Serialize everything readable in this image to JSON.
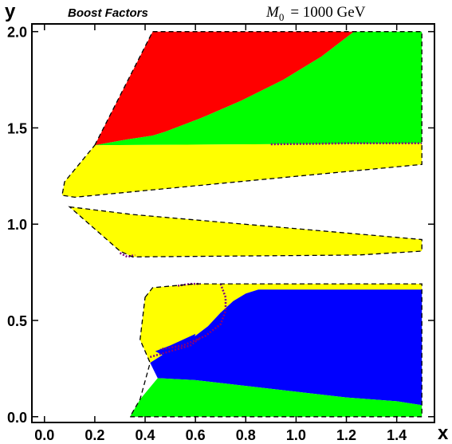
{
  "chart_data": {
    "type": "area",
    "title": "Boost Factors",
    "annotation": {
      "symbol": "M",
      "subscript": "0",
      "text": "= 1000 GeV"
    },
    "xlabel": "x",
    "ylabel": "y",
    "xlim": [
      -0.05,
      1.55
    ],
    "ylim": [
      -0.03,
      2.04
    ],
    "xticks": [
      "0.0",
      "0.2",
      "0.4",
      "0.6",
      "0.8",
      "1.0",
      "1.2",
      "1.4"
    ],
    "xtick_values": [
      0.0,
      0.2,
      0.4,
      0.6,
      0.8,
      1.0,
      1.2,
      1.4
    ],
    "yticks": [
      "0.0",
      "0.5",
      "1.0",
      "1.5",
      "2.0"
    ],
    "ytick_values": [
      0.0,
      0.5,
      1.0,
      1.5,
      2.0
    ],
    "grid": false,
    "colors": {
      "red": "#ff0000",
      "green": "#00ff00",
      "yellow": "#ffff00",
      "blue": "#0000ff",
      "purple": "#800080",
      "boundary": "#000000"
    },
    "regions": [
      {
        "color": "red",
        "points": [
          [
            0.2,
            1.41
          ],
          [
            0.43,
            2.0
          ],
          [
            1.23,
            2.0
          ],
          [
            1.1,
            1.87
          ],
          [
            0.95,
            1.75
          ],
          [
            0.78,
            1.64
          ],
          [
            0.62,
            1.55
          ],
          [
            0.48,
            1.48
          ],
          [
            0.43,
            1.46
          ],
          [
            0.33,
            1.44
          ],
          [
            0.2,
            1.41
          ]
        ]
      },
      {
        "color": "green",
        "points": [
          [
            0.2,
            1.41
          ],
          [
            0.33,
            1.44
          ],
          [
            0.43,
            1.46
          ],
          [
            0.48,
            1.48
          ],
          [
            0.62,
            1.55
          ],
          [
            0.78,
            1.64
          ],
          [
            0.95,
            1.75
          ],
          [
            1.1,
            1.87
          ],
          [
            1.23,
            2.0
          ],
          [
            1.5,
            2.0
          ],
          [
            1.5,
            1.42
          ],
          [
            0.2,
            1.41
          ]
        ]
      },
      {
        "color": "yellow",
        "points": [
          [
            0.2,
            1.41
          ],
          [
            1.5,
            1.42
          ],
          [
            1.5,
            1.31
          ],
          [
            0.12,
            1.14
          ],
          [
            0.07,
            1.15
          ],
          [
            0.08,
            1.22
          ],
          [
            0.2,
            1.41
          ]
        ]
      },
      {
        "color": "yellow",
        "points": [
          [
            0.1,
            1.09
          ],
          [
            0.35,
            1.05
          ],
          [
            1.5,
            0.92
          ],
          [
            1.5,
            0.86
          ],
          [
            1.25,
            0.84
          ],
          [
            0.35,
            0.83
          ],
          [
            0.3,
            0.86
          ],
          [
            0.1,
            1.09
          ]
        ]
      },
      {
        "color": "yellow",
        "points": [
          [
            0.4,
            0.62
          ],
          [
            0.43,
            0.67
          ],
          [
            0.6,
            0.69
          ],
          [
            1.5,
            0.69
          ],
          [
            1.5,
            0.66
          ],
          [
            0.85,
            0.66
          ],
          [
            0.8,
            0.64
          ],
          [
            0.75,
            0.6
          ],
          [
            0.7,
            0.54
          ],
          [
            0.65,
            0.47
          ],
          [
            0.58,
            0.4
          ],
          [
            0.48,
            0.33
          ],
          [
            0.42,
            0.28
          ],
          [
            0.38,
            0.4
          ],
          [
            0.4,
            0.62
          ]
        ]
      },
      {
        "color": "blue",
        "points": [
          [
            0.42,
            0.28
          ],
          [
            0.48,
            0.33
          ],
          [
            0.58,
            0.4
          ],
          [
            0.65,
            0.47
          ],
          [
            0.7,
            0.54
          ],
          [
            0.75,
            0.6
          ],
          [
            0.8,
            0.64
          ],
          [
            0.85,
            0.66
          ],
          [
            1.5,
            0.66
          ],
          [
            1.5,
            0.06
          ],
          [
            1.4,
            0.08
          ],
          [
            1.2,
            0.1
          ],
          [
            1.0,
            0.13
          ],
          [
            0.8,
            0.16
          ],
          [
            0.6,
            0.19
          ],
          [
            0.45,
            0.2
          ],
          [
            0.42,
            0.28
          ]
        ]
      },
      {
        "color": "green",
        "points": [
          [
            0.34,
            0.0
          ],
          [
            0.38,
            0.09
          ],
          [
            0.45,
            0.2
          ],
          [
            0.6,
            0.19
          ],
          [
            0.8,
            0.16
          ],
          [
            1.0,
            0.13
          ],
          [
            1.2,
            0.1
          ],
          [
            1.4,
            0.08
          ],
          [
            1.5,
            0.06
          ],
          [
            1.5,
            0.0
          ],
          [
            0.34,
            0.0
          ]
        ]
      },
      {
        "color": "yellow",
        "points": [
          [
            0.45,
            0.42
          ],
          [
            0.5,
            0.5
          ],
          [
            0.56,
            0.58
          ],
          [
            0.62,
            0.62
          ],
          [
            0.65,
            0.6
          ],
          [
            0.6,
            0.55
          ],
          [
            0.56,
            0.48
          ],
          [
            0.52,
            0.43
          ],
          [
            0.5,
            0.36
          ],
          [
            0.45,
            0.42
          ]
        ]
      },
      {
        "color": "blue",
        "points": [
          [
            0.44,
            0.34
          ],
          [
            0.5,
            0.37
          ],
          [
            0.55,
            0.4
          ],
          [
            0.6,
            0.43
          ],
          [
            0.59,
            0.38
          ],
          [
            0.52,
            0.33
          ],
          [
            0.47,
            0.32
          ],
          [
            0.44,
            0.34
          ]
        ]
      }
    ],
    "contours": [
      {
        "color": "purple",
        "points": [
          [
            0.7,
            0.69
          ],
          [
            0.72,
            0.62
          ],
          [
            0.72,
            0.55
          ],
          [
            0.7,
            0.48
          ],
          [
            0.64,
            0.42
          ],
          [
            0.55,
            0.37
          ],
          [
            0.46,
            0.35
          ]
        ]
      },
      {
        "color": "purple",
        "points": [
          [
            0.42,
            0.31
          ],
          [
            0.5,
            0.34
          ],
          [
            0.58,
            0.37
          ],
          [
            0.62,
            0.41
          ]
        ]
      },
      {
        "color": "purple",
        "points": [
          [
            0.53,
            0.68
          ],
          [
            0.58,
            0.69
          ],
          [
            0.62,
            0.69
          ]
        ]
      },
      {
        "color": "purple",
        "points": [
          [
            0.3,
            0.85
          ],
          [
            0.33,
            0.83
          ],
          [
            0.36,
            0.84
          ]
        ]
      },
      {
        "color": "purple",
        "points": [
          [
            0.9,
            1.415
          ],
          [
            1.2,
            1.42
          ],
          [
            1.5,
            1.42
          ]
        ]
      }
    ],
    "boundaries": [
      {
        "points": [
          [
            0.2,
            1.41
          ],
          [
            0.43,
            2.0
          ],
          [
            1.5,
            2.0
          ],
          [
            1.5,
            1.31
          ],
          [
            0.12,
            1.14
          ],
          [
            0.07,
            1.15
          ],
          [
            0.08,
            1.22
          ],
          [
            0.2,
            1.41
          ]
        ]
      },
      {
        "points": [
          [
            0.1,
            1.09
          ],
          [
            0.35,
            1.05
          ],
          [
            1.5,
            0.92
          ],
          [
            1.5,
            0.86
          ],
          [
            1.25,
            0.84
          ],
          [
            0.35,
            0.83
          ],
          [
            0.3,
            0.86
          ],
          [
            0.1,
            1.09
          ]
        ]
      },
      {
        "points": [
          [
            0.4,
            0.62
          ],
          [
            0.43,
            0.67
          ],
          [
            0.6,
            0.69
          ],
          [
            1.5,
            0.69
          ],
          [
            1.5,
            0.0
          ],
          [
            0.34,
            0.0
          ],
          [
            0.38,
            0.09
          ],
          [
            0.42,
            0.28
          ],
          [
            0.38,
            0.4
          ],
          [
            0.4,
            0.62
          ]
        ]
      }
    ]
  }
}
